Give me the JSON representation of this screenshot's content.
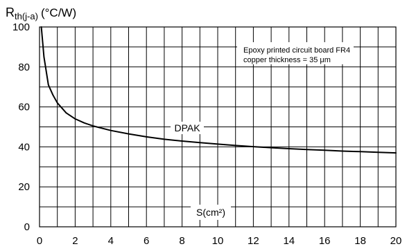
{
  "chart_data": {
    "type": "line",
    "ylabel": {
      "main": "R",
      "sub": "th(j-a)",
      "unit": "(°C/W)"
    },
    "xlabel": "S(cm²)",
    "xlim": [
      0,
      20
    ],
    "ylim": [
      0,
      100
    ],
    "x_ticks": [
      "0",
      "2",
      "4",
      "6",
      "8",
      "10",
      "12",
      "14",
      "16",
      "18",
      "20"
    ],
    "y_ticks": [
      "0",
      "20",
      "40",
      "60",
      "80",
      "100"
    ],
    "grid": true,
    "annotation": {
      "line1": "Epoxy printed circuit board FR4",
      "line2": "copper thickness = 35 μm"
    },
    "series": [
      {
        "name": "DPAK",
        "x": [
          0.1,
          0.25,
          0.5,
          0.75,
          1,
          1.5,
          2,
          2.5,
          3,
          4,
          5,
          6,
          7,
          8,
          9,
          10,
          11,
          12,
          13,
          14,
          15,
          16,
          17,
          18,
          19,
          20
        ],
        "y": [
          100,
          85,
          71,
          66,
          62,
          57,
          54,
          52,
          50.5,
          48.2,
          46.5,
          45,
          43.8,
          42.9,
          42.1,
          41.4,
          40.7,
          40.1,
          39.6,
          39.1,
          38.7,
          38.3,
          37.9,
          37.6,
          37.3,
          37
        ]
      }
    ]
  }
}
